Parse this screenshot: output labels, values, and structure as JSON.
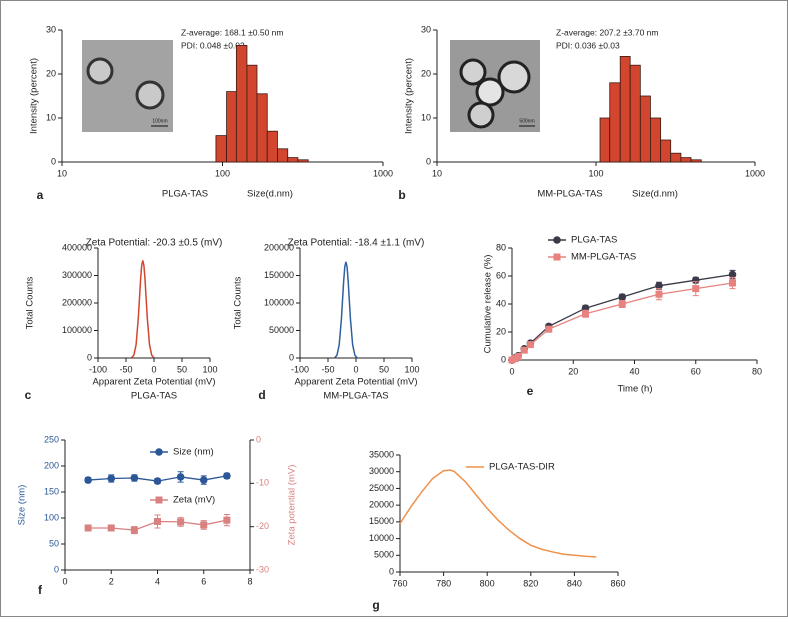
{
  "chart_data": [
    {
      "type": "histogram",
      "panel": "a",
      "xscale": "log",
      "bins": [
        91,
        106,
        122,
        142,
        164,
        190,
        220,
        255,
        295,
        342
      ],
      "values": [
        6,
        16,
        26.5,
        22,
        15.5,
        7,
        3,
        1,
        0.5
      ],
      "color": "#d2452f",
      "xlim": [
        10,
        1000
      ],
      "xticks": [
        10,
        100,
        1000
      ],
      "ylim": [
        0,
        30
      ],
      "yticks": [
        0,
        10,
        20,
        30
      ],
      "ylabel": "Intensity (percent)",
      "xlabel": "Size(d.nm)",
      "sample": "PLGA-TAS",
      "annotations": [
        "Z-average: 168.1 ±0.50 nm",
        "PDI: 0.048 ±0.02"
      ],
      "inset_scale_label": "100nm"
    },
    {
      "type": "histogram",
      "panel": "b",
      "xscale": "log",
      "bins": [
        106,
        122,
        142,
        164,
        190,
        220,
        255,
        295,
        342,
        396,
        459
      ],
      "values": [
        10,
        18,
        24,
        22,
        15,
        10,
        5,
        2,
        1,
        0.5
      ],
      "color": "#d2452f",
      "xlim": [
        10,
        1000
      ],
      "xticks": [
        10,
        100,
        1000
      ],
      "ylim": [
        0,
        30
      ],
      "yticks": [
        0,
        10,
        20,
        30
      ],
      "ylabel": "Intensity (percent)",
      "xlabel": "Size(d.nm)",
      "sample": "MM-PLGA-TAS",
      "annotations": [
        "Z-average: 207.2 ±3.70 nm",
        "PDI: 0.036 ±0.03"
      ],
      "inset_scale_label": "500nm"
    },
    {
      "type": "line",
      "panel": "c",
      "title": "Zeta Potential: -20.3 ±0.5 (mV)",
      "x": [
        -40,
        -36,
        -32,
        -28,
        -26,
        -24,
        -22,
        -20,
        -18,
        -16,
        -14,
        -12,
        -8,
        -4,
        0
      ],
      "series": [
        {
          "color": "#d2452f",
          "values": [
            1000,
            10000,
            48000,
            146000,
            215000,
            284000,
            336000,
            355000,
            336000,
            284000,
            215000,
            146000,
            48000,
            10000,
            1000
          ]
        }
      ],
      "xlim": [
        -100,
        100
      ],
      "xticks": [
        -100,
        -50,
        0,
        50,
        100
      ],
      "ylim": [
        0,
        400000
      ],
      "yticks": [
        0,
        100000,
        200000,
        300000,
        400000
      ],
      "ylabel": "Total Counts",
      "xlabel": "Apparent Zeta Potential (mV)",
      "sample": "PLGA-TAS"
    },
    {
      "type": "line",
      "panel": "d",
      "title": "Zeta Potential: -18.4 ±1.1 (mV)",
      "x": [
        -38,
        -34,
        -30,
        -26,
        -24,
        -22,
        -20,
        -18,
        -16,
        -14,
        -12,
        -10,
        -6,
        -2,
        2
      ],
      "series": [
        {
          "color": "#2f5f9e",
          "values": [
            500,
            5000,
            24000,
            72000,
            106000,
            140000,
            166000,
            175000,
            166000,
            140000,
            106000,
            72000,
            24000,
            5000,
            500
          ]
        }
      ],
      "xlim": [
        -100,
        100
      ],
      "xticks": [
        -100,
        -50,
        0,
        50,
        100
      ],
      "ylim": [
        0,
        200000
      ],
      "yticks": [
        0,
        50000,
        100000,
        150000,
        200000
      ],
      "ylabel": "Total Counts",
      "xlabel": "Apparent Zeta Potential (mV)",
      "sample": "MM-PLGA-TAS"
    },
    {
      "type": "line",
      "panel": "e",
      "x": [
        0,
        1,
        2,
        4,
        6,
        12,
        24,
        36,
        48,
        60,
        72
      ],
      "series": [
        {
          "name": "PLGA-TAS",
          "color": "#3a3a48",
          "marker": "circle",
          "values": [
            0,
            1.5,
            3,
            8,
            12,
            24,
            37,
            45,
            53,
            57,
            61
          ],
          "errors": [
            0.5,
            0.8,
            1,
            1,
            1,
            1.5,
            2,
            2,
            2.5,
            2,
            3
          ]
        },
        {
          "name": "MM-PLGA-TAS",
          "color": "#e8827f",
          "marker": "square",
          "values": [
            0,
            1,
            2.5,
            7,
            11,
            22,
            33,
            40,
            47,
            51,
            55
          ],
          "errors": [
            0.5,
            0.8,
            1,
            1,
            1,
            1.5,
            2.5,
            2.5,
            4,
            5,
            4
          ]
        }
      ],
      "xlim": [
        0,
        80
      ],
      "xticks": [
        0,
        20,
        40,
        60,
        80
      ],
      "ylim": [
        0,
        80
      ],
      "yticks": [
        0,
        20,
        40,
        60,
        80
      ],
      "ylabel": "Cumulative release (%)",
      "xlabel": "Time (h)"
    },
    {
      "type": "line",
      "panel": "f",
      "x": [
        1,
        2,
        3,
        4,
        5,
        6,
        7
      ],
      "series": [
        {
          "name": "Size (nm)",
          "color": "#2b5797",
          "marker": "circle",
          "values": [
            173,
            176,
            177,
            171,
            179,
            173,
            181
          ],
          "errors": [
            5,
            7,
            6,
            5,
            10,
            8,
            5
          ]
        },
        {
          "name": "Zeta (mV)",
          "color": "#d98080",
          "marker": "square",
          "axis": "y2",
          "values": [
            -20.3,
            -20.3,
            -20.8,
            -18.8,
            -18.9,
            -19.6,
            -18.5
          ],
          "errors": [
            0.5,
            0.5,
            0.8,
            1.5,
            1,
            1,
            1.3
          ]
        }
      ],
      "xlim": [
        0,
        8
      ],
      "xticks": [
        0,
        2,
        4,
        6,
        8
      ],
      "ylim": [
        0,
        250
      ],
      "yticks": [
        0,
        50,
        100,
        150,
        200,
        250
      ],
      "y2lim": [
        -30,
        0
      ],
      "y2ticks": [
        -30,
        -20,
        -10,
        0
      ],
      "ylabel": "Size (nm)",
      "y2label": "Zeta potential (mV)"
    },
    {
      "type": "line",
      "panel": "g",
      "x": [
        760,
        765,
        770,
        775,
        780,
        783,
        785,
        790,
        795,
        800,
        805,
        810,
        815,
        820,
        825,
        830,
        835,
        840,
        845,
        850
      ],
      "series": [
        {
          "name": "PLGA-TAS-DIR",
          "color": "#f0914a",
          "values": [
            14500,
            19500,
            24000,
            28000,
            30300,
            30500,
            30000,
            27000,
            23000,
            19000,
            15500,
            12500,
            10000,
            8000,
            6800,
            6000,
            5300,
            5000,
            4700,
            4500
          ]
        }
      ],
      "xlim": [
        760,
        860
      ],
      "xticks": [
        760,
        780,
        800,
        820,
        840,
        860
      ],
      "ylim": [
        0,
        35000
      ],
      "yticks": [
        0,
        5000,
        10000,
        15000,
        20000,
        25000,
        30000,
        35000
      ]
    }
  ]
}
